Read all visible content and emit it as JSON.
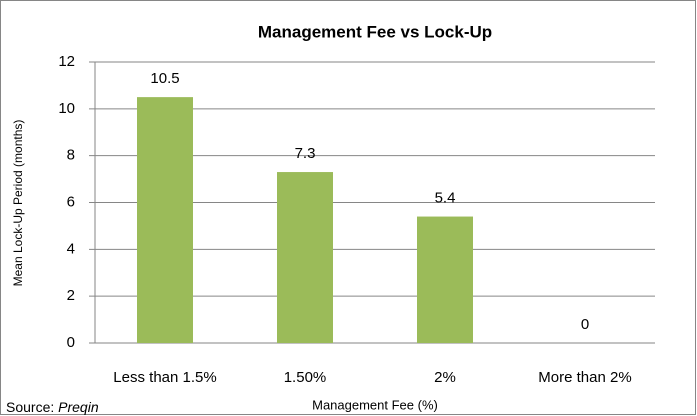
{
  "chart_data": {
    "type": "bar",
    "title": "Management Fee vs Lock-Up",
    "categories": [
      "Less than 1.5%",
      "1.50%",
      "2%",
      "More than 2%"
    ],
    "values": [
      10.5,
      7.3,
      5.4,
      0
    ],
    "color": "#9bbb59",
    "ylim": [
      0,
      12
    ],
    "yticks": [
      0,
      2,
      4,
      6,
      8,
      10,
      12
    ],
    "grid": true,
    "x_label": "Management Fee (%)",
    "y_label": "Mean Lock-Up Period (months)",
    "source_label": "Source:",
    "source": "Preqin"
  }
}
